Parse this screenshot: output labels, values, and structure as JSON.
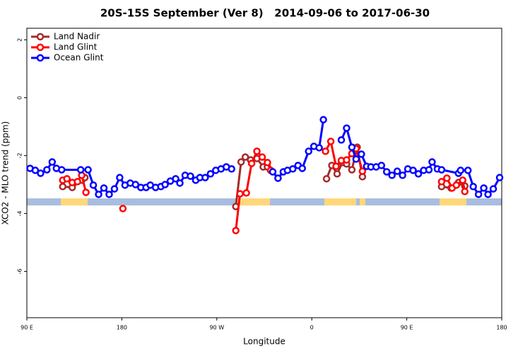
{
  "chart_data": {
    "type": "line",
    "title": "20S-15S September (Ver 8)   2014-09-06 to 2017-06-30",
    "x_label": "Longitude",
    "y_label": "XCO2 - MLO trend (ppm)",
    "xlim": [
      90,
      540
    ],
    "ylim": [
      -7.6,
      2.4
    ],
    "xticks": [
      90,
      180,
      {
        "value": 270,
        "label": "90 W"
      },
      {
        "value": 360,
        "label": "0"
      },
      {
        "value": 450,
        "label": "90 E"
      },
      {
        "value": 540,
        "label": "180"
      }
    ],
    "xtick0_label": "90 E",
    "yticks": [
      -6,
      -4,
      -2,
      0,
      2
    ],
    "legend": "top-left",
    "series": [
      {
        "name": "Land Nadir",
        "color": "#a52a2a",
        "x": [
          124,
          133,
          142,
          145,
          null,
          288,
          293,
          297,
          302,
          308,
          314,
          318,
          null,
          374,
          379,
          384,
          389,
          393,
          398,
          403,
          408,
          null,
          483,
          492,
          499,
          505
        ],
        "values": [
          -3.07,
          -3.1,
          -2.85,
          -2.76,
          null,
          -3.76,
          -2.22,
          -2.05,
          -2.15,
          -2.1,
          -2.39,
          -2.39,
          null,
          -2.8,
          -2.34,
          -2.63,
          -2.24,
          -2.29,
          -2.49,
          -1.71,
          -2.73,
          null,
          -3.07,
          -3.12,
          -2.93,
          -3.05
        ]
      },
      {
        "name": "Land Glint",
        "color": "#ff0000",
        "x": [
          124,
          128,
          133,
          138,
          142,
          146,
          null,
          181,
          null,
          288,
          292,
          298,
          303,
          308,
          313,
          318,
          321,
          null,
          373,
          378,
          383,
          388,
          393,
          398,
          402,
          408,
          null,
          483,
          488,
          493,
          497,
          503,
          505
        ],
        "values": [
          -2.85,
          -2.8,
          -2.93,
          -2.9,
          -2.68,
          -3.27,
          null,
          -3.83,
          null,
          -4.59,
          -3.32,
          -3.29,
          -2.27,
          -1.85,
          -2.05,
          -2.24,
          -2.51,
          null,
          -1.85,
          -1.51,
          -2.37,
          -2.17,
          -2.15,
          -1.93,
          -1.76,
          -2.54,
          null,
          -2.9,
          -2.78,
          -3.12,
          -3.02,
          -2.85,
          -3.24
        ]
      },
      {
        "name": "Ocean Glint",
        "color": "#0000ff",
        "x": [
          93,
          98,
          103,
          109,
          114,
          118,
          123,
          141,
          148,
          153,
          158,
          163,
          168,
          173,
          178,
          183,
          188,
          193,
          198,
          203,
          207,
          212,
          217,
          221,
          226,
          231,
          235,
          240,
          245,
          250,
          254,
          259,
          264,
          269,
          274,
          279,
          284,
          null,
          323,
          328,
          333,
          337,
          342,
          347,
          351,
          357,
          362,
          367,
          371,
          null,
          388,
          393,
          398,
          402,
          407,
          412,
          416,
          421,
          426,
          431,
          436,
          441,
          446,
          451,
          456,
          461,
          466,
          471,
          474,
          479,
          483,
          499,
          501,
          508,
          513,
          518,
          523,
          527,
          532,
          538
        ],
        "values": [
          -2.44,
          -2.51,
          -2.61,
          -2.49,
          -2.22,
          -2.44,
          -2.49,
          -2.49,
          -2.49,
          -3.02,
          -3.34,
          -3.12,
          -3.34,
          -3.15,
          -2.76,
          -3.02,
          -2.95,
          -3.0,
          -3.1,
          -3.1,
          -3.02,
          -3.1,
          -3.07,
          -3.0,
          -2.88,
          -2.8,
          -2.95,
          -2.68,
          -2.71,
          -2.85,
          -2.76,
          -2.76,
          -2.63,
          -2.51,
          -2.46,
          -2.39,
          -2.46,
          null,
          -2.56,
          -2.78,
          -2.56,
          -2.51,
          -2.46,
          -2.34,
          -2.44,
          -1.85,
          -1.68,
          -1.73,
          -0.76,
          null,
          -1.46,
          -1.05,
          -1.71,
          -2.12,
          -1.95,
          -2.37,
          -2.39,
          -2.39,
          -2.34,
          -2.56,
          -2.68,
          -2.54,
          -2.68,
          -2.46,
          -2.51,
          -2.63,
          -2.51,
          -2.49,
          -2.22,
          -2.46,
          -2.49,
          -2.61,
          -2.51,
          -2.51,
          -3.07,
          -3.34,
          -3.12,
          -3.34,
          -3.15,
          -2.76
        ]
      }
    ]
  }
}
